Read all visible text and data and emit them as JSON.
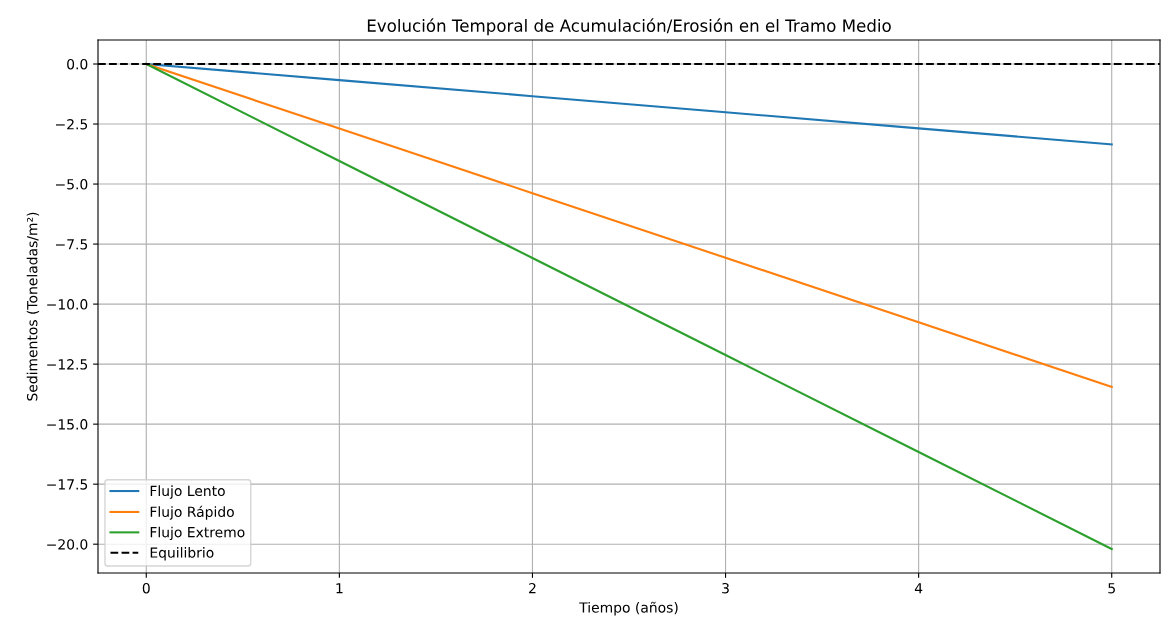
{
  "chart_data": {
    "type": "line",
    "title": "Evolución Temporal de Acumulación/Erosión en el Tramo Medio",
    "xlabel": "Tiempo (años)",
    "ylabel": "Sedimentos (Toneladas/m²)",
    "x": [
      0,
      1,
      2,
      3,
      4,
      5
    ],
    "series": [
      {
        "name": "Flujo Lento",
        "color": "#1f77b4",
        "values": [
          0,
          -0.67,
          -1.34,
          -2.01,
          -2.68,
          -3.35
        ]
      },
      {
        "name": "Flujo Rápido",
        "color": "#ff7f0e",
        "values": [
          0,
          -2.69,
          -5.38,
          -8.07,
          -10.76,
          -13.45
        ]
      },
      {
        "name": "Flujo Extremo",
        "color": "#2ca02c",
        "values": [
          0,
          -4.04,
          -8.08,
          -12.12,
          -16.16,
          -20.2
        ]
      }
    ],
    "ref_lines": [
      {
        "axis": "y",
        "value": 0,
        "label": "Equilibrio",
        "color": "#000000",
        "line_style": "dashed"
      }
    ],
    "xlim": [
      -0.25,
      5.25
    ],
    "xticks": [
      0,
      1,
      2,
      3,
      4,
      5
    ],
    "ylim": [
      -21.2,
      1.0
    ],
    "yticks": [
      {
        "value": 0,
        "label": "0.0"
      },
      {
        "value": -2.5,
        "label": "−2.5"
      },
      {
        "value": -5,
        "label": "−5.0"
      },
      {
        "value": -7.5,
        "label": "−7.5"
      },
      {
        "value": -10,
        "label": "−10.0"
      },
      {
        "value": -12.5,
        "label": "−12.5"
      },
      {
        "value": -15,
        "label": "−15.0"
      },
      {
        "value": -17.5,
        "label": "−17.5"
      },
      {
        "value": -20,
        "label": "−20.0"
      }
    ],
    "grid": true,
    "legend": "bottom left",
    "marker": "none",
    "line_style": "solid"
  }
}
